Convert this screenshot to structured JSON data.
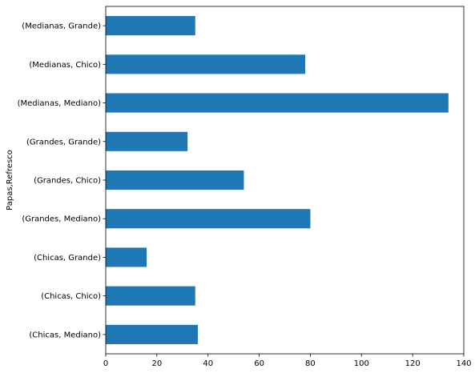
{
  "chart_data": {
    "type": "bar",
    "orientation": "horizontal",
    "categories": [
      "(Chicas, Mediano)",
      "(Chicas, Chico)",
      "(Chicas, Grande)",
      "(Grandes, Mediano)",
      "(Grandes, Chico)",
      "(Grandes, Grande)",
      "(Medianas, Mediano)",
      "(Medianas, Chico)",
      "(Medianas, Grande)"
    ],
    "values": [
      36,
      35,
      16,
      80,
      54,
      32,
      134,
      78,
      35
    ],
    "title": "",
    "xlabel": "",
    "ylabel": "Papas,Refresco",
    "xlim": [
      0,
      140
    ],
    "xticks": [
      "0",
      "20",
      "40",
      "60",
      "80",
      "100",
      "120",
      "140"
    ],
    "grid": false,
    "legend": "none",
    "bar_color": "#1f77b4"
  }
}
